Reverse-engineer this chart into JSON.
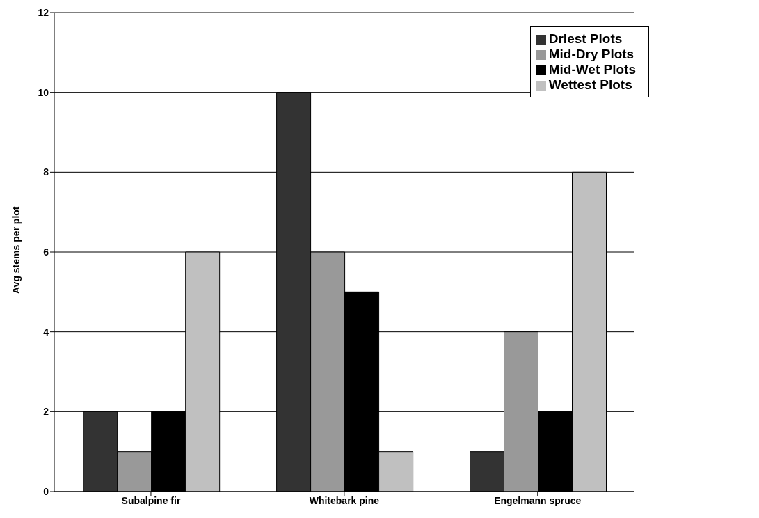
{
  "chart_data": {
    "type": "bar",
    "ylabel": "Avg stems per plot",
    "categories": [
      "Subalpine fir",
      "Whitebark pine",
      "Engelmann spruce"
    ],
    "series": [
      {
        "name": "Driest Plots",
        "color": "#333333",
        "values": [
          2,
          10,
          1
        ]
      },
      {
        "name": "Mid-Dry Plots",
        "color": "#999999",
        "values": [
          1,
          6,
          4
        ]
      },
      {
        "name": "Mid-Wet Plots",
        "color": "#000000",
        "values": [
          2,
          5,
          2
        ]
      },
      {
        "name": "Wettest Plots",
        "color": "#c0c0c0",
        "values": [
          6,
          1,
          8
        ]
      }
    ],
    "ylim": [
      0,
      12
    ],
    "yticks": [
      0,
      2,
      4,
      6,
      8,
      10,
      12
    ],
    "grid": "y",
    "legend": "top right"
  }
}
